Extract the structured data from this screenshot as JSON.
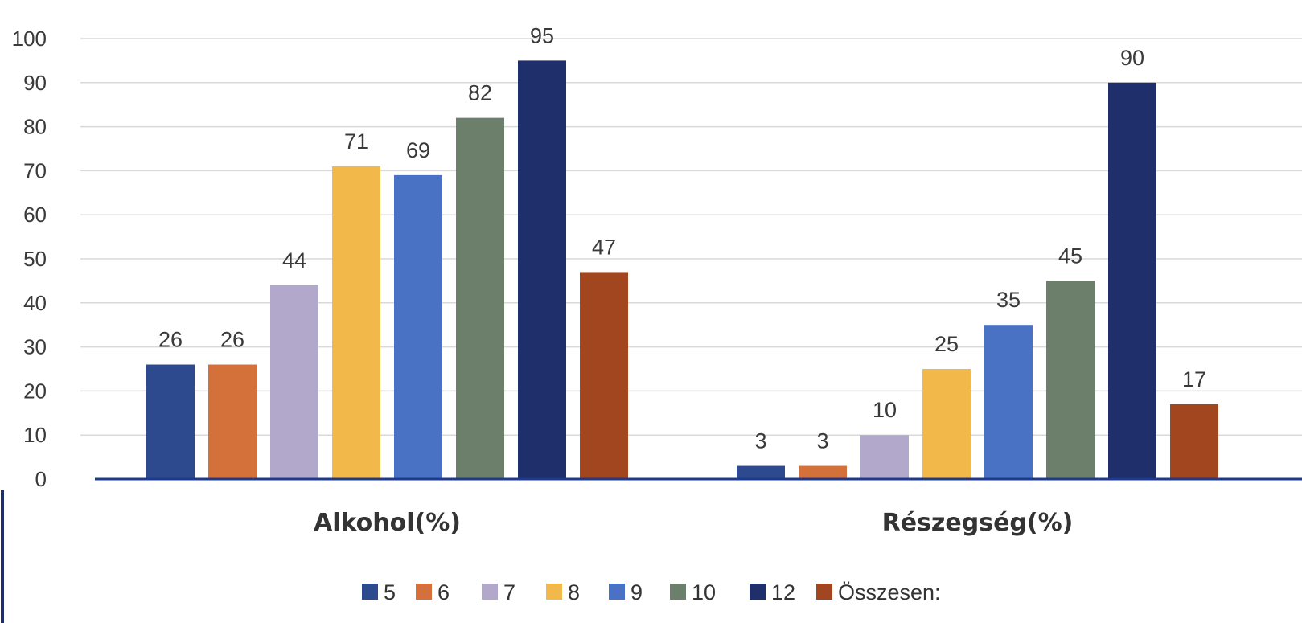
{
  "chart_data": {
    "type": "bar",
    "categories": [
      "Alkohol(%)",
      "Részegség(%)"
    ],
    "series": [
      {
        "name": "5",
        "values": [
          26,
          3
        ],
        "color": "#2e4a8f"
      },
      {
        "name": "6",
        "values": [
          26,
          3
        ],
        "color": "#d4703a"
      },
      {
        "name": "7",
        "values": [
          44,
          10
        ],
        "color": "#b2a8cc"
      },
      {
        "name": "8",
        "values": [
          71,
          25
        ],
        "color": "#f2b94a"
      },
      {
        "name": "9",
        "values": [
          69,
          35
        ],
        "color": "#4a72c4"
      },
      {
        "name": "10",
        "values": [
          82,
          45
        ],
        "color": "#6b7f6a"
      },
      {
        "name": "12",
        "values": [
          95,
          90
        ],
        "color": "#1e2f6b"
      },
      {
        "name": "Összesen:",
        "values": [
          47,
          17
        ],
        "color": "#a2461f"
      }
    ],
    "data_labels": [
      [
        "26",
        "26",
        "44",
        "71",
        "69",
        "82",
        "95",
        "47"
      ],
      [
        "3",
        "3",
        "10",
        "25",
        "35",
        "45",
        "90",
        "17"
      ]
    ],
    "y_ticks": [
      "0",
      "10",
      "20",
      "30",
      "40",
      "50",
      "60",
      "70",
      "80",
      "90",
      "100"
    ],
    "ylim": [
      0,
      100
    ],
    "grid": true,
    "legend": "bottom",
    "title": "",
    "xlabel": "",
    "ylabel": ""
  }
}
